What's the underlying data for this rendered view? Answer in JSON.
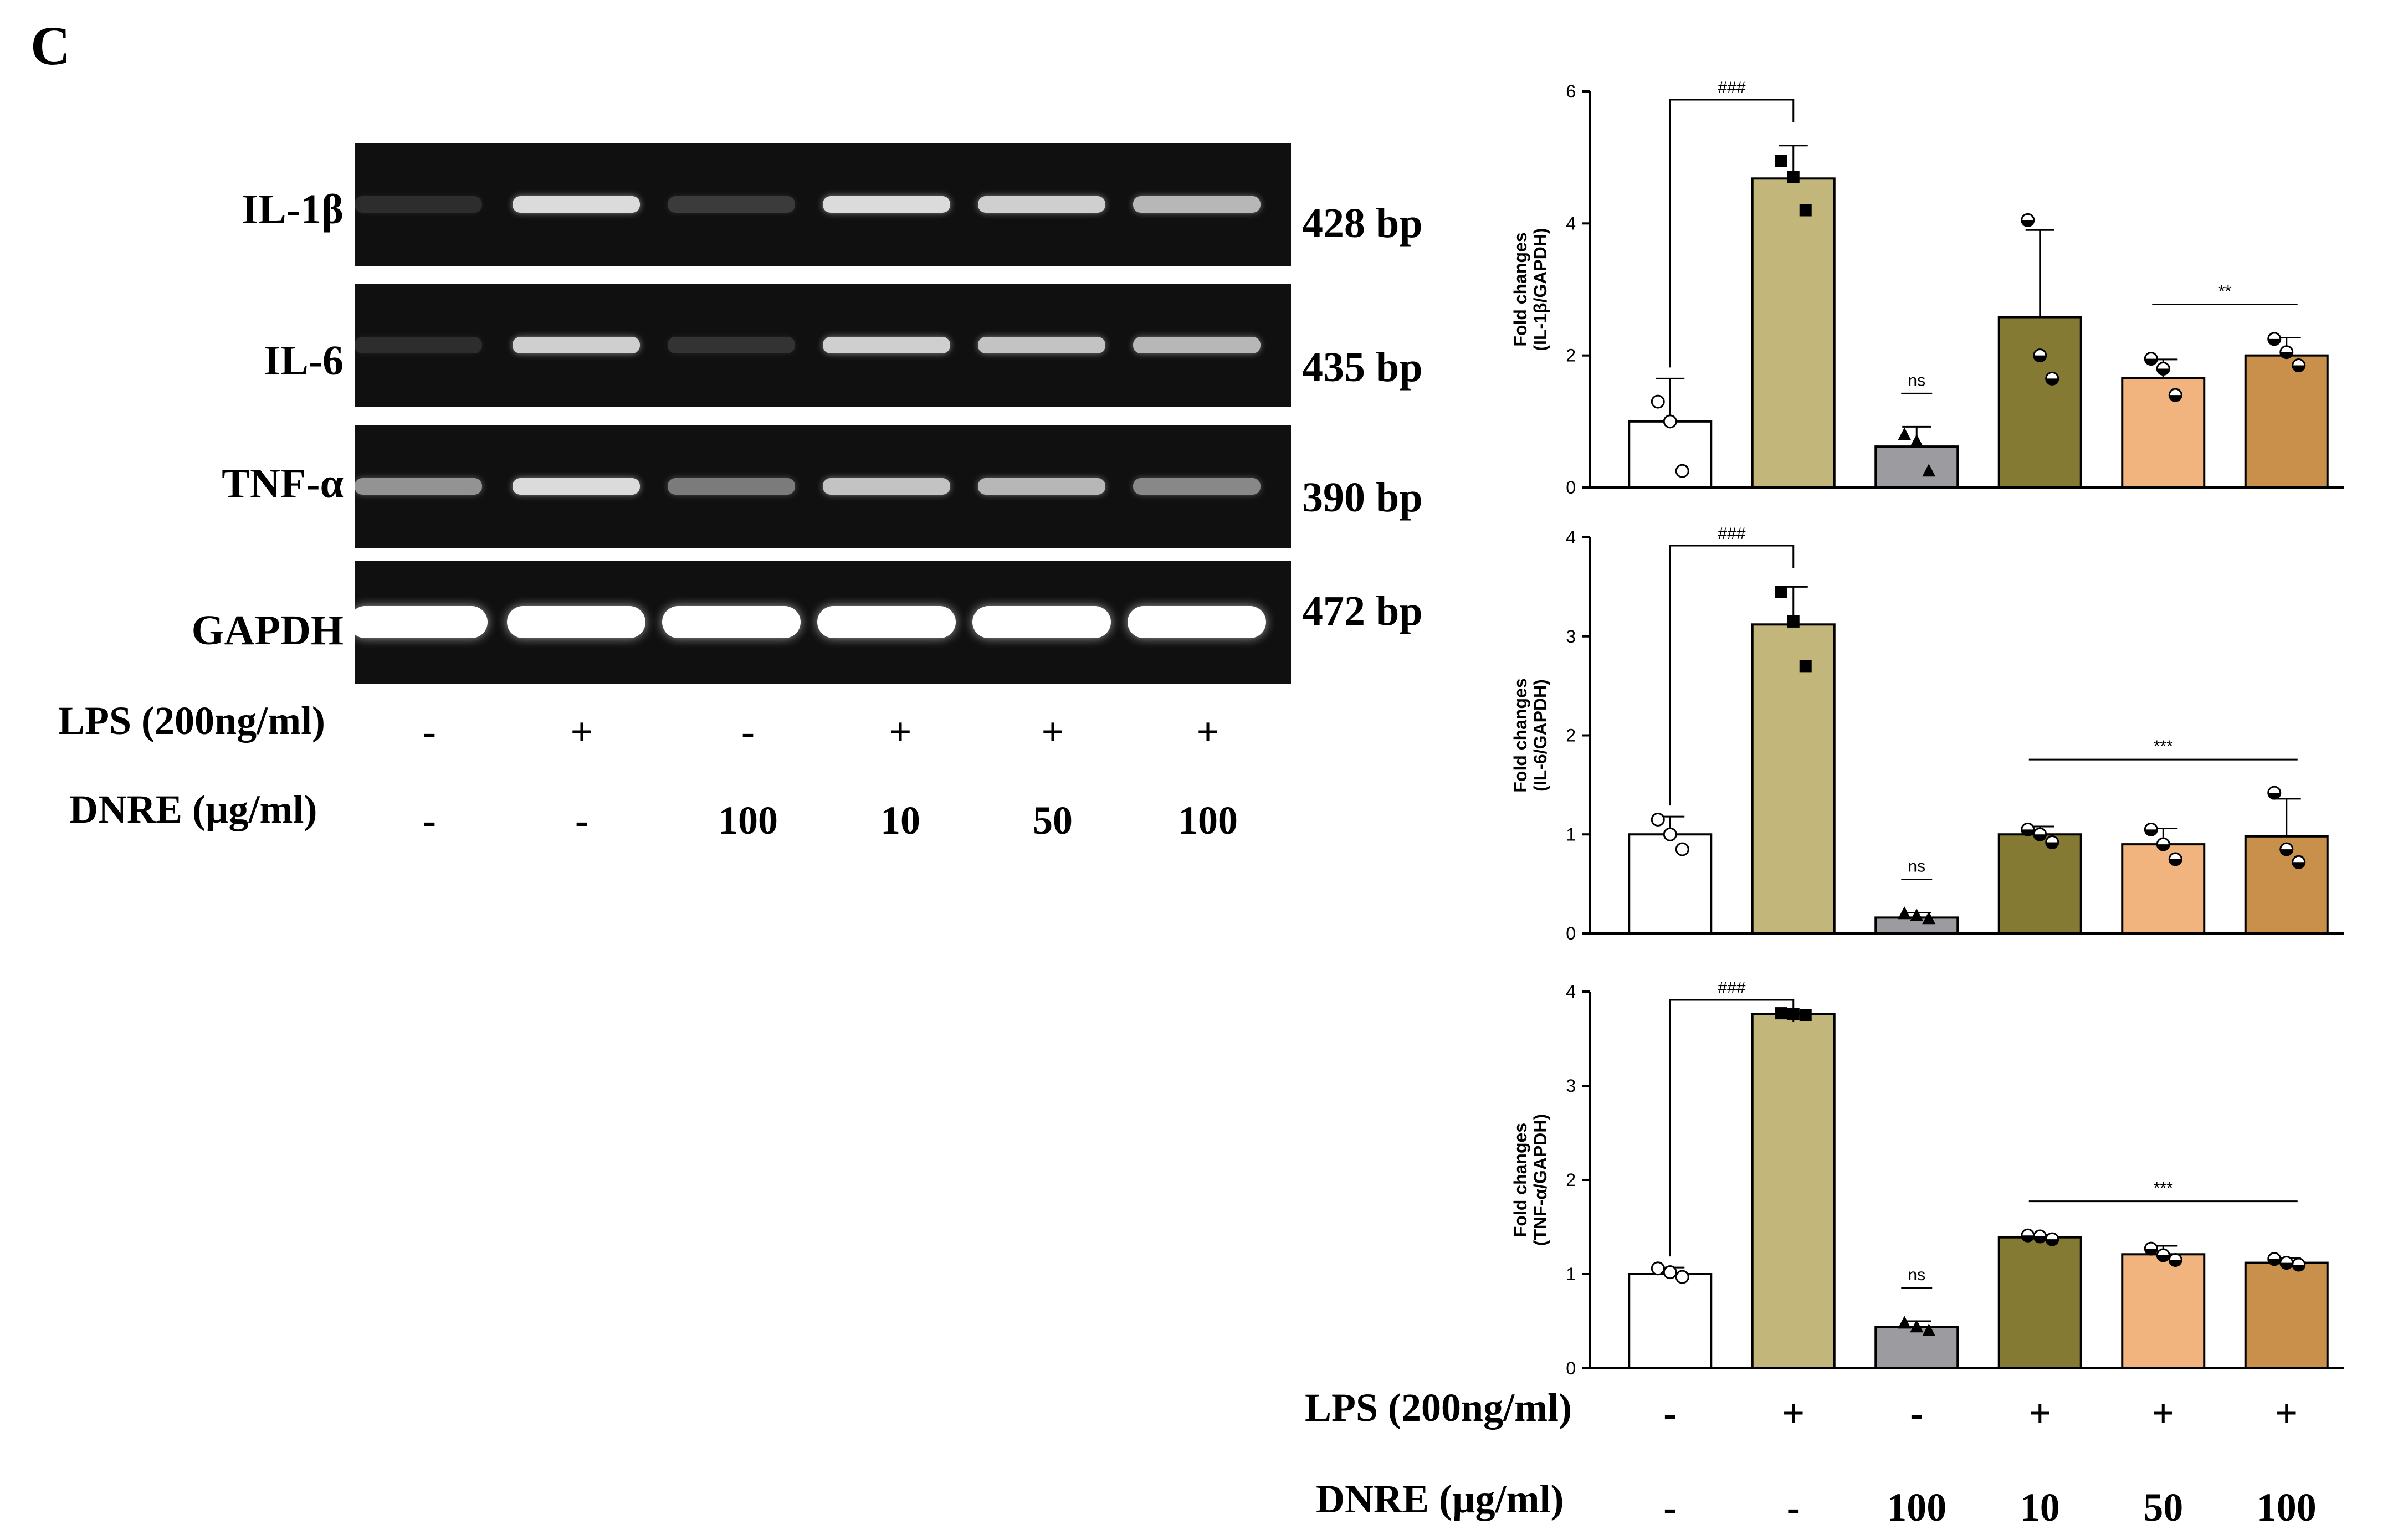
{
  "panel_label": "C",
  "gel": {
    "rows": [
      {
        "name": "IL-1β",
        "bp": "428 bp",
        "intensities": [
          0.12,
          0.85,
          0.18,
          0.85,
          0.8,
          0.7
        ]
      },
      {
        "name": "IL-6",
        "bp": "435 bp",
        "intensities": [
          0.12,
          0.8,
          0.15,
          0.8,
          0.75,
          0.7
        ]
      },
      {
        "name": "TNF-α",
        "bp": "390 bp",
        "intensities": [
          0.55,
          0.85,
          0.45,
          0.75,
          0.7,
          0.5
        ]
      },
      {
        "name": "GAPDH",
        "bp": "472 bp",
        "intensities": [
          1.0,
          1.0,
          1.0,
          1.0,
          1.0,
          1.0
        ]
      }
    ],
    "conditions": {
      "lps_label": "LPS (200ng/ml)",
      "lps": [
        "-",
        "+",
        "-",
        "+",
        "+",
        "+"
      ],
      "dnre_label": "DNRE (µg/ml)",
      "dnre": [
        "-",
        "-",
        "100",
        "10",
        "50",
        "100"
      ]
    }
  },
  "bar_colors": [
    "#ffffff",
    "#c2b67a",
    "#9c9ca0",
    "#857a33",
    "#f2b47e",
    "#c9904c"
  ],
  "chart_data": [
    {
      "type": "bar",
      "title": "",
      "ylabel": "Fold changes (IL-1β/GAPDH)",
      "ylim": [
        0,
        6
      ],
      "yticks": [
        0,
        2,
        4,
        6
      ],
      "categories": [
        "-/-",
        "+/-",
        "-/100",
        "+/10",
        "+/50",
        "+/100"
      ],
      "values": [
        1.0,
        4.68,
        0.62,
        2.58,
        1.66,
        2.0
      ],
      "errors": [
        0.65,
        0.5,
        0.3,
        1.32,
        0.28,
        0.27
      ],
      "points": [
        [
          1.3,
          1.0,
          0.25
        ],
        [
          4.95,
          4.7,
          4.2
        ],
        [
          0.8,
          0.7,
          0.25
        ],
        [
          4.05,
          2.0,
          1.65
        ],
        [
          1.95,
          1.8,
          1.4
        ],
        [
          2.25,
          2.05,
          1.85
        ]
      ],
      "markers": [
        "open-circle",
        "square",
        "triangle",
        "half-circle",
        "half-circle",
        "half-circle"
      ],
      "annotations": [
        {
          "text": "###",
          "from": 0,
          "to": 1,
          "type": "bracket"
        },
        {
          "text": "ns",
          "from": 2,
          "to": 2,
          "type": "line"
        },
        {
          "text": "**",
          "from": 4,
          "to": 5,
          "type": "line"
        }
      ]
    },
    {
      "type": "bar",
      "title": "",
      "ylabel": "Fold changes (IL-6/GAPDH)",
      "ylim": [
        0,
        4
      ],
      "yticks": [
        0,
        1,
        2,
        3,
        4
      ],
      "categories": [
        "-/-",
        "+/-",
        "-/100",
        "+/10",
        "+/50",
        "+/100"
      ],
      "values": [
        1.0,
        3.12,
        0.16,
        1.0,
        0.9,
        0.98
      ],
      "errors": [
        0.18,
        0.38,
        0.05,
        0.08,
        0.16,
        0.38
      ],
      "points": [
        [
          1.15,
          1.0,
          0.85
        ],
        [
          3.45,
          3.15,
          2.7
        ],
        [
          0.2,
          0.18,
          0.15
        ],
        [
          1.05,
          1.0,
          0.92
        ],
        [
          1.05,
          0.9,
          0.75
        ],
        [
          1.42,
          0.85,
          0.72
        ]
      ],
      "markers": [
        "open-circle",
        "square",
        "triangle",
        "half-circle",
        "half-circle",
        "half-circle"
      ],
      "annotations": [
        {
          "text": "###",
          "from": 0,
          "to": 1,
          "type": "bracket"
        },
        {
          "text": "ns",
          "from": 2,
          "to": 2,
          "type": "line"
        },
        {
          "text": "***",
          "from": 3,
          "to": 5,
          "type": "line"
        }
      ]
    },
    {
      "type": "bar",
      "title": "",
      "ylabel": "Fold changes (TNF-α/GAPDH)",
      "ylim": [
        0,
        4
      ],
      "yticks": [
        0,
        1,
        2,
        3,
        4
      ],
      "categories": [
        "-/-",
        "+/-",
        "-/100",
        "+/10",
        "+/50",
        "+/100"
      ],
      "values": [
        1.0,
        3.76,
        0.44,
        1.39,
        1.21,
        1.12
      ],
      "errors": [
        0.07,
        0.02,
        0.06,
        0.03,
        0.09,
        0.05
      ],
      "points": [
        [
          1.06,
          1.02,
          0.97
        ],
        [
          3.77,
          3.76,
          3.75
        ],
        [
          0.48,
          0.44,
          0.4
        ],
        [
          1.41,
          1.4,
          1.37
        ],
        [
          1.27,
          1.2,
          1.15
        ],
        [
          1.16,
          1.12,
          1.1
        ]
      ],
      "markers": [
        "open-circle",
        "square",
        "triangle",
        "half-circle",
        "half-circle",
        "half-circle"
      ],
      "annotations": [
        {
          "text": "###",
          "from": 0,
          "to": 1,
          "type": "bracket"
        },
        {
          "text": "ns",
          "from": 2,
          "to": 2,
          "type": "line"
        },
        {
          "text": "***",
          "from": 3,
          "to": 5,
          "type": "line"
        }
      ]
    }
  ],
  "chart_conditions": {
    "lps_label": "LPS (200ng/ml)",
    "lps": [
      "-",
      "+",
      "-",
      "+",
      "+",
      "+"
    ],
    "dnre_label": "DNRE (µg/ml)",
    "dnre": [
      "-",
      "-",
      "100",
      "10",
      "50",
      "100"
    ]
  }
}
